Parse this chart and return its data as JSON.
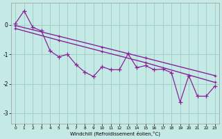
{
  "xlabel": "Windchill (Refroidissement éolien,°C)",
  "background_color": "#c5eae5",
  "grid_color": "#a0d0c8",
  "line_color": "#882299",
  "x_data": [
    0,
    1,
    2,
    3,
    4,
    5,
    6,
    7,
    8,
    9,
    10,
    11,
    12,
    13,
    14,
    15,
    16,
    17,
    18,
    19,
    20,
    21,
    22,
    23
  ],
  "jagged_y": [
    0.05,
    0.48,
    -0.08,
    -0.2,
    -0.88,
    -1.08,
    -1.0,
    -1.35,
    -1.6,
    -1.75,
    -1.42,
    -1.52,
    -1.52,
    -0.98,
    -1.45,
    -1.38,
    -1.52,
    -1.5,
    -1.62,
    -2.62,
    -1.72,
    -2.42,
    -2.42,
    -2.08
  ],
  "trend_upper_x": [
    0,
    5,
    10,
    15,
    23
  ],
  "trend_upper_y": [
    -0.02,
    -0.38,
    -0.75,
    -1.12,
    -1.72
  ],
  "trend_lower_x": [
    0,
    5,
    10,
    15,
    23
  ],
  "trend_lower_y": [
    -0.12,
    -0.52,
    -0.9,
    -1.28,
    -1.95
  ],
  "ylim": [
    -3.35,
    0.75
  ],
  "yticks": [
    0,
    -1,
    -2,
    -3
  ],
  "xlim": [
    -0.5,
    23.5
  ],
  "xtick_labels": [
    "0",
    "1",
    "2",
    "3",
    "4",
    "5",
    "6",
    "7",
    "8",
    "9",
    "10",
    "11",
    "12",
    "13",
    "14",
    "15",
    "16",
    "17",
    "18",
    "19",
    "20",
    "21",
    "22",
    "23"
  ]
}
